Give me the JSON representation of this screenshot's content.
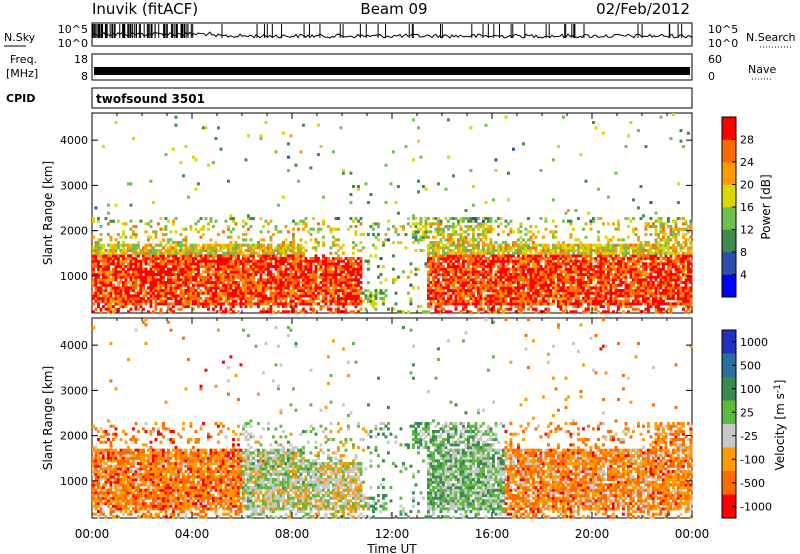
{
  "header": {
    "station": "Inuvik (fitACF)",
    "beam": "Beam 09",
    "date": "02/Feb/2012"
  },
  "noise_panel": {
    "left_label": "N.Sky",
    "right_label": "N.Search",
    "left_ticks": [
      "10^5",
      "10^0"
    ],
    "right_ticks": [
      "10^5",
      "10^0"
    ]
  },
  "freq_panel": {
    "left_label_1": "Freq.",
    "left_label_2": "[MHz]",
    "right_label": "Nave",
    "left_ticks": [
      "18",
      "8"
    ],
    "right_ticks": [
      "60",
      "0"
    ]
  },
  "cpid_panel": {
    "label": "CPID",
    "value": "twofsound 3501"
  },
  "colors": {
    "power_scale": [
      "#0000ff",
      "#2a4fa8",
      "#3f8a4a",
      "#6fbf4f",
      "#d9d600",
      "#ff9a00",
      "#ff6a00",
      "#ff0000"
    ],
    "velocity_scale": [
      "#2030c0",
      "#2a6fa0",
      "#3a8a50",
      "#60b840",
      "#c8c8c8",
      "#ff9a00",
      "#ff6a00",
      "#ff0000"
    ]
  },
  "chart_data": [
    {
      "type": "heatmap",
      "panel": "power",
      "xlabel": "",
      "ylabel": "Slant Range [km]",
      "x_ticks": [
        "00:00",
        "04:00",
        "08:00",
        "12:00",
        "16:00",
        "20:00",
        "00:00"
      ],
      "y_ticks": [
        "1000",
        "2000",
        "3000",
        "4000"
      ],
      "xlim": [
        0,
        24
      ],
      "ylim": [
        180,
        4600
      ],
      "colorbar": {
        "label": "Power [dB]",
        "ticks": [
          "4",
          "8",
          "12",
          "16",
          "20",
          "24",
          "28"
        ]
      }
    },
    {
      "type": "heatmap",
      "panel": "velocity",
      "xlabel": "Time UT",
      "ylabel": "Slant Range [km]",
      "x_ticks": [
        "00:00",
        "04:00",
        "08:00",
        "12:00",
        "16:00",
        "20:00",
        "00:00"
      ],
      "y_ticks": [
        "1000",
        "2000",
        "3000",
        "4000"
      ],
      "xlim": [
        0,
        24
      ],
      "ylim": [
        180,
        4600
      ],
      "colorbar": {
        "label": "Velocity [m s^-1]",
        "ticks": [
          "1000",
          "500",
          "100",
          "25",
          "-25",
          "-100",
          "-500",
          "-1000"
        ]
      }
    }
  ]
}
